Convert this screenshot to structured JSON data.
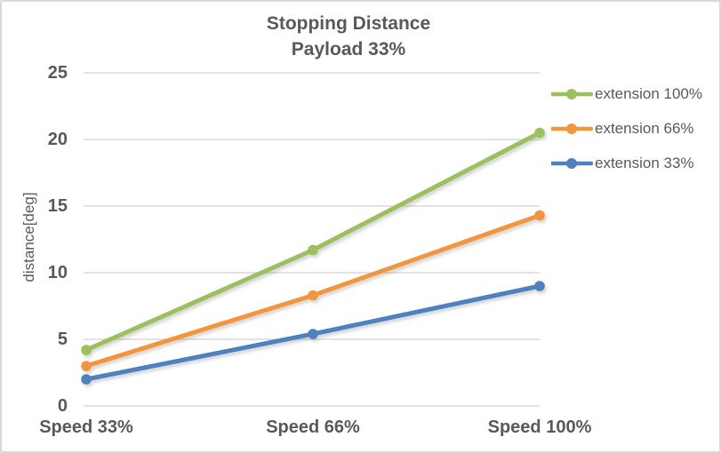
{
  "chart": {
    "title_line1": "Stopping Distance",
    "title_line2": "Payload 33%",
    "ylabel": "distance[deg]"
  },
  "chart_data": {
    "type": "line",
    "title": "Stopping Distance Payload 33%",
    "categories": [
      "Speed 33%",
      "Speed 66%",
      "Speed 100%"
    ],
    "series": [
      {
        "name": "extension 100%",
        "values": [
          4.2,
          11.7,
          20.5
        ],
        "color": "#9CBF5F"
      },
      {
        "name": "extension 66%",
        "values": [
          3.0,
          8.3,
          14.3
        ],
        "color": "#F2953F"
      },
      {
        "name": "extension 33%",
        "values": [
          2.0,
          5.4,
          9.0
        ],
        "color": "#4E81BD"
      }
    ],
    "xlabel": "",
    "ylabel": "distance[deg]",
    "ylim": [
      0,
      25
    ],
    "y_ticks": [
      0,
      5,
      10,
      15,
      20,
      25
    ],
    "grid": true,
    "legend_position": "right",
    "marker": "circle",
    "colors": {
      "grid": "#D9D9D9",
      "text": "#595959",
      "border": "#D9D9D9",
      "background": "#FFFFFF"
    }
  }
}
